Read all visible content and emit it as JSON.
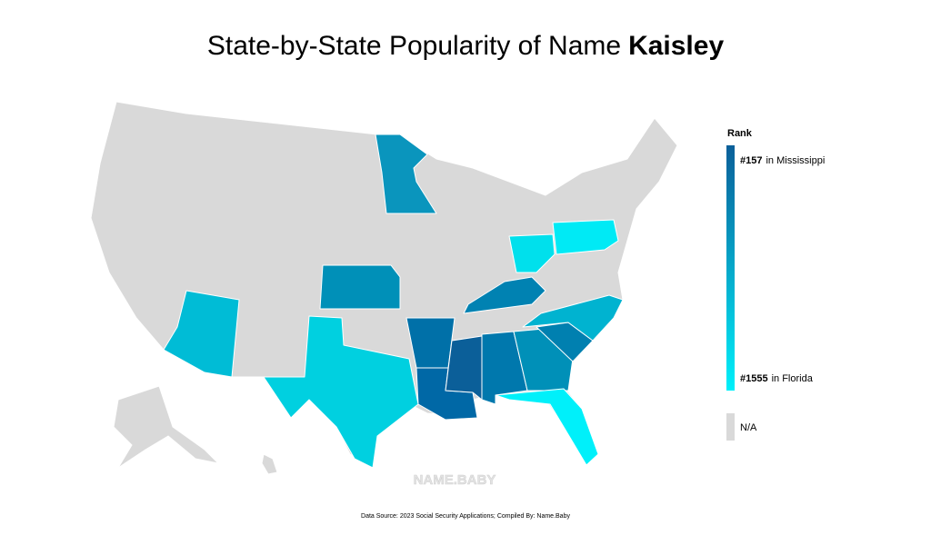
{
  "header": {
    "title": "State-by-State Popularity of Name",
    "name": "Kaisley"
  },
  "legend": {
    "title": "Rank",
    "top": {
      "rank": "#157",
      "place": "in Mississippi",
      "color": "#0b5f99"
    },
    "bottom": {
      "rank": "#1555",
      "place": "in Florida",
      "color": "#00f0fa"
    },
    "na": {
      "label": "N/A",
      "color": "#d9d9d9"
    }
  },
  "map": {
    "base_color": "#d9d9d9",
    "border_color": "#ffffff",
    "regions": [
      {
        "color": "#0a95bd"
      },
      {
        "color": "#0090b8"
      },
      {
        "color": "#00bcd6"
      },
      {
        "color": "#00d0e0"
      },
      {
        "color": "#0070a8"
      },
      {
        "color": "#0068a6"
      },
      {
        "color": "#0b5f99"
      },
      {
        "color": "#0078ad"
      },
      {
        "color": "#0090b8"
      },
      {
        "color": "#0080b0"
      },
      {
        "color": "#00b3d0"
      },
      {
        "color": "#0082b2"
      },
      {
        "color": "#00e0ec"
      },
      {
        "color": "#00eaf5"
      },
      {
        "color": "#00f0fa"
      }
    ]
  },
  "watermark": "NAME.BABY",
  "footer": "Data Source: 2023 Social Security Applications; Compiled By: Name.Baby"
}
